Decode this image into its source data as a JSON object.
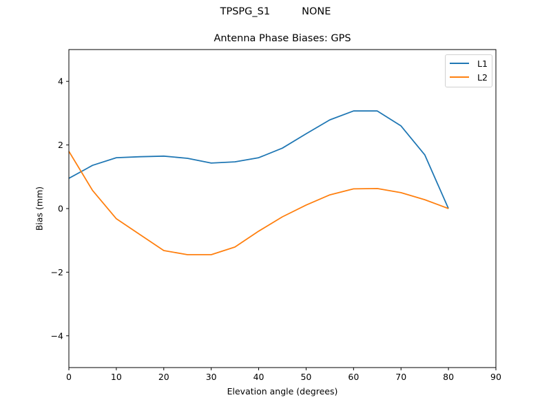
{
  "figure": {
    "suptitle_left": "TPSPG_S1",
    "suptitle_right": "NONE"
  },
  "chart_data": {
    "type": "line",
    "title": "Antenna Phase Biases: GPS",
    "xlabel": "Elevation angle (degrees)",
    "ylabel": "Bias (mm)",
    "xlim": [
      0,
      90
    ],
    "ylim": [
      -5,
      5
    ],
    "xticks": [
      0,
      10,
      20,
      30,
      40,
      50,
      60,
      70,
      80,
      90
    ],
    "yticks": [
      -4,
      -2,
      0,
      2,
      4
    ],
    "ytick_labels": [
      "−4",
      "−2",
      "0",
      "2",
      "4"
    ],
    "grid": false,
    "legend_position": "upper right",
    "x": [
      0,
      5,
      10,
      15,
      20,
      25,
      30,
      35,
      40,
      45,
      50,
      55,
      60,
      65,
      70,
      75,
      80
    ],
    "series": [
      {
        "name": "L1",
        "color": "#1f77b4",
        "values": [
          0.95,
          1.36,
          1.6,
          1.63,
          1.65,
          1.58,
          1.43,
          1.47,
          1.6,
          1.9,
          2.35,
          2.79,
          3.07,
          3.07,
          2.6,
          1.69,
          0.0
        ]
      },
      {
        "name": "L2",
        "color": "#ff7f0e",
        "values": [
          1.8,
          0.57,
          -0.32,
          -0.82,
          -1.32,
          -1.45,
          -1.45,
          -1.21,
          -0.71,
          -0.26,
          0.11,
          0.43,
          0.62,
          0.63,
          0.5,
          0.28,
          0.0
        ]
      }
    ]
  }
}
